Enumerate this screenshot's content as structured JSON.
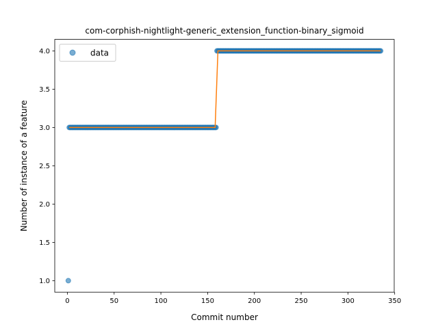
{
  "chart_data": {
    "type": "scatter",
    "title": "com-corphish-nightlight-generic_extension_function-binary_sigmoid",
    "xlabel": "Commit number",
    "ylabel": "Number of instance of a feature",
    "xlim": [
      -13.5,
      349.5
    ],
    "ylim": [
      0.85,
      4.15
    ],
    "xticks": [
      0,
      50,
      100,
      150,
      200,
      250,
      300,
      350
    ],
    "xtick_labels": [
      "0",
      "50",
      "100",
      "150",
      "200",
      "250",
      "300",
      "350"
    ],
    "yticks": [
      1.0,
      1.5,
      2.0,
      2.5,
      3.0,
      3.5,
      4.0
    ],
    "ytick_labels": [
      "1.0",
      "1.5",
      "2.0",
      "2.5",
      "3.0",
      "3.5",
      "4.0"
    ],
    "grid": false,
    "legend": {
      "placement": "upper-left",
      "entries": [
        "data"
      ]
    },
    "series": [
      {
        "name": "data",
        "kind": "points",
        "color": "#1f77b4",
        "segments": [
          {
            "x_start": 1,
            "x_end": 1,
            "y": 1.0
          },
          {
            "x_start": 2,
            "x_end": 159,
            "y": 3.0
          },
          {
            "x_start": 160,
            "x_end": 335,
            "y": 4.0
          }
        ]
      },
      {
        "kind": "line",
        "color": "#ff7f0e",
        "x": [
          2,
          158,
          161,
          335
        ],
        "y": [
          3.0,
          3.0,
          4.0,
          4.0
        ]
      }
    ]
  }
}
